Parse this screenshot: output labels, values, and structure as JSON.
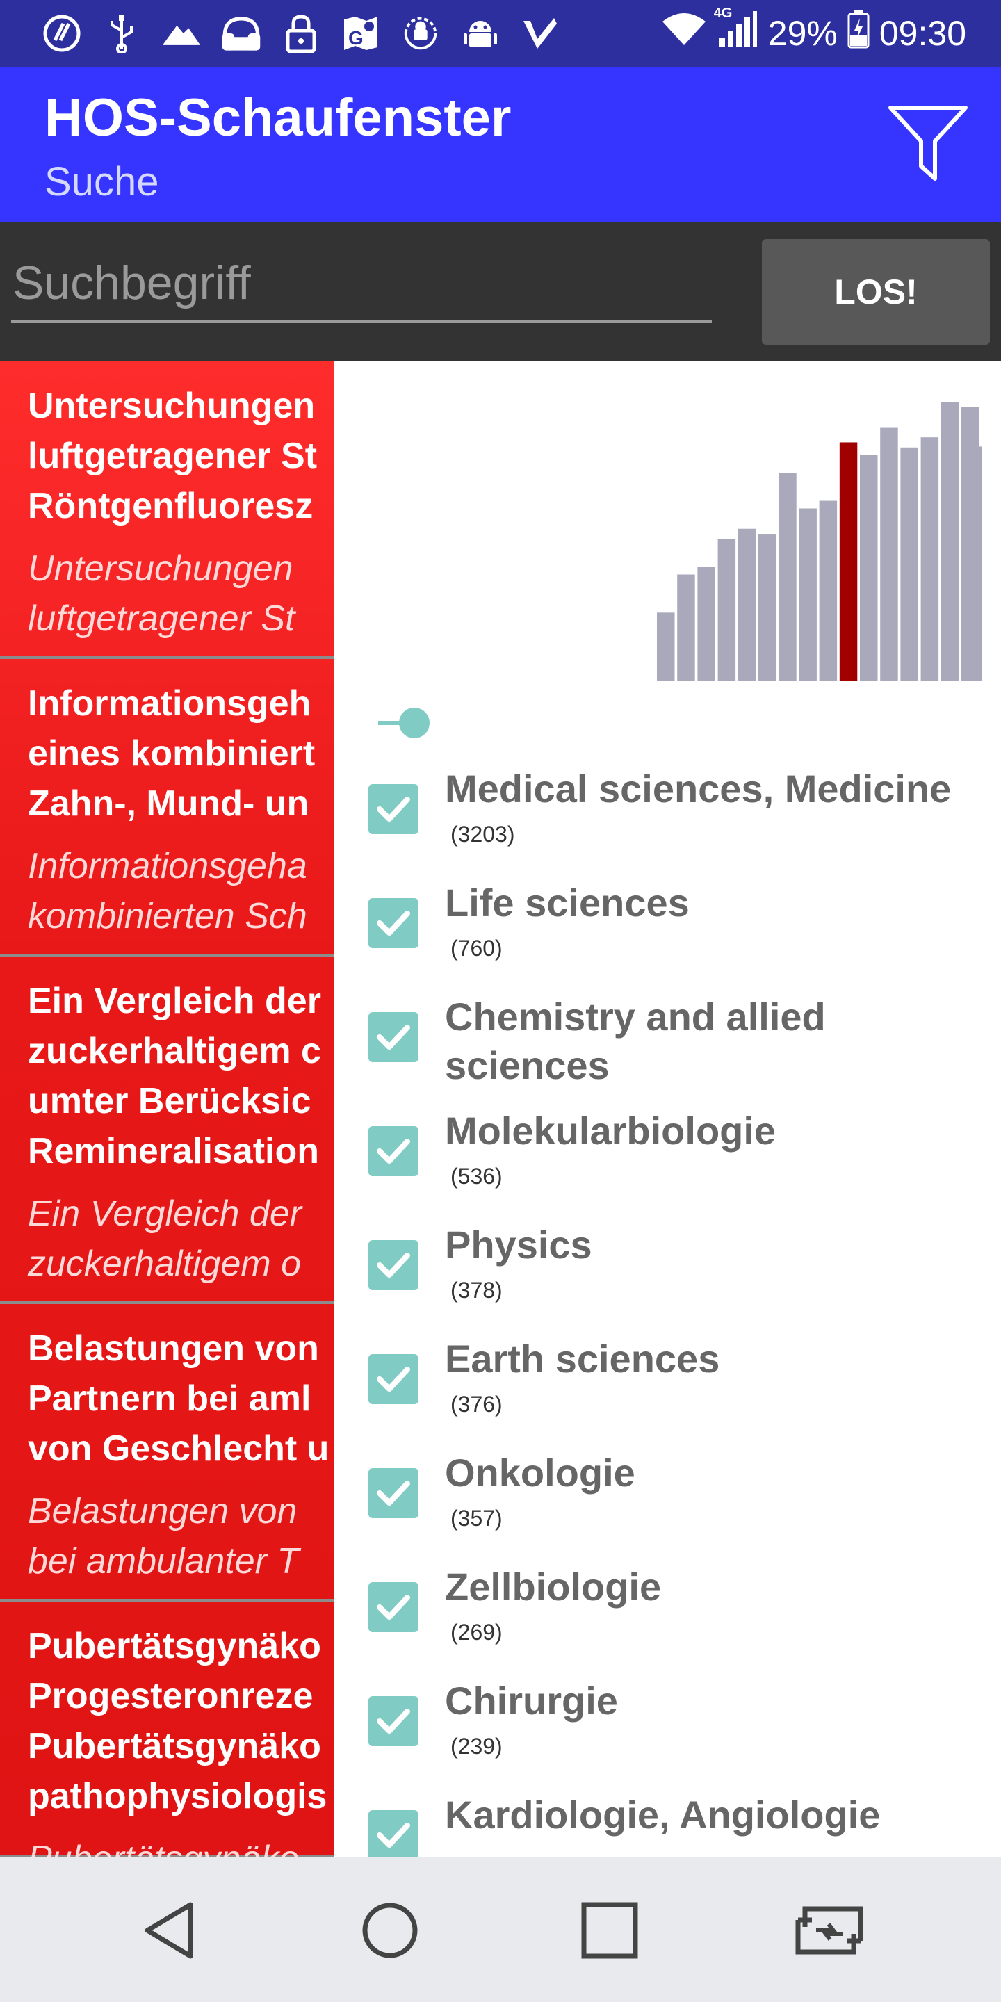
{
  "status_bar": {
    "left_icons": [
      "app-logo-icon",
      "usb-icon",
      "mountain-icon",
      "headphones-icon",
      "lock-icon",
      "maps-icon",
      "android-debug-icon",
      "android-icon",
      "check-icon"
    ],
    "network": "4G",
    "battery": "29%",
    "time": "09:30"
  },
  "app_bar": {
    "title": "HOS-Schaufenster",
    "subtitle": "Suche",
    "filter_icon": "filter-icon"
  },
  "search": {
    "placeholder": "Suchbegriff",
    "value": "",
    "button_label": "LOS!"
  },
  "results": [
    {
      "title_lines": [
        "Untersuchungen",
        "luftgetragener St",
        "Röntgenfluoresz"
      ],
      "subtitle_lines": [
        "Untersuchungen",
        "luftgetragener St"
      ]
    },
    {
      "title_lines": [
        "Informationsgeh",
        "eines kombiniert",
        "Zahn-, Mund- un"
      ],
      "subtitle_lines": [
        "Informationsgeha",
        "kombinierten Sch"
      ]
    },
    {
      "title_lines": [
        "Ein Vergleich der",
        "zuckerhaltigem c",
        "umter Berücksic",
        "Remineralisation"
      ],
      "subtitle_lines": [
        "Ein Vergleich der",
        "zuckerhaltigem o"
      ]
    },
    {
      "title_lines": [
        "Belastungen von",
        "Partnern bei aml",
        "von Geschlecht u"
      ],
      "subtitle_lines": [
        "Belastungen von",
        "bei ambulanter T"
      ]
    },
    {
      "title_lines": [
        "Pubertätsgynäko",
        "Progesteronreze",
        "Pubertätsgynäko",
        "pathophysiologis"
      ],
      "subtitle_lines": [
        "Pubertätsgynäko"
      ]
    }
  ],
  "histogram": {
    "bar_color": "#a9a9bb",
    "highlight_color": "#a00000",
    "highlight_index": 9,
    "values": [
      27,
      42,
      45,
      56,
      60,
      58,
      82,
      68,
      71,
      94,
      89,
      100,
      92,
      96,
      110,
      108
    ]
  },
  "filter_categories": [
    {
      "name": "Medical sciences, Medicine",
      "count": "(3203)",
      "checked": true
    },
    {
      "name": "Life sciences",
      "count": "(760)",
      "checked": true
    },
    {
      "name": "Chemistry and allied sciences",
      "count": "",
      "checked": true
    },
    {
      "name": "Molekularbiologie",
      "count": "(536)",
      "checked": true
    },
    {
      "name": "Physics",
      "count": "(378)",
      "checked": true
    },
    {
      "name": "Earth sciences",
      "count": "(376)",
      "checked": true
    },
    {
      "name": "Onkologie",
      "count": "(357)",
      "checked": true
    },
    {
      "name": "Zellbiologie",
      "count": "(269)",
      "checked": true
    },
    {
      "name": "Chirurgie",
      "count": "(239)",
      "checked": true
    },
    {
      "name": "Kardiologie, Angiologie",
      "count": "",
      "checked": true
    }
  ],
  "accent_color": "#3535ff",
  "checkbox_color": "#80cbc4",
  "nav_bar": [
    "back-icon",
    "home-icon",
    "recents-icon",
    "switch-app-icon"
  ]
}
